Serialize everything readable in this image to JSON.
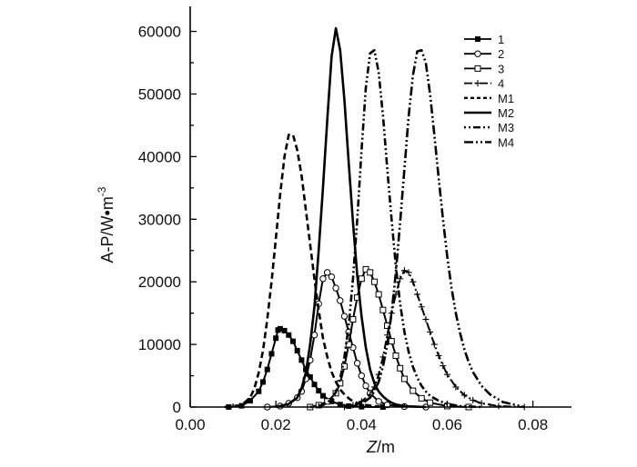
{
  "chart_data": {
    "type": "line",
    "xlabel": {
      "var": "Z",
      "unit": "/m"
    },
    "ylabel": {
      "base": "A-P/W•m",
      "sup": "-3"
    },
    "xlim": [
      0,
      0.089
    ],
    "ylim": [
      0,
      64000
    ],
    "xticks": [
      0.0,
      0.02,
      0.04,
      0.06,
      0.08
    ],
    "xtick_labels": [
      "0.00",
      "0.02",
      "0.04",
      "0.06",
      "0.08"
    ],
    "yticks": [
      0,
      10000,
      20000,
      30000,
      40000,
      50000,
      60000
    ],
    "ytick_labels": [
      "0",
      "10000",
      "20000",
      "30000",
      "40000",
      "50000",
      "60000"
    ],
    "legend_position": "top-right",
    "series": [
      {
        "name": "1",
        "line": "solid",
        "marker": "square-filled",
        "markerStep": 1,
        "x": [
          0.009,
          0.012,
          0.014,
          0.016,
          0.017,
          0.018,
          0.019,
          0.02,
          0.0205,
          0.021,
          0.022,
          0.023,
          0.024,
          0.025,
          0.026,
          0.027,
          0.028,
          0.029,
          0.03,
          0.031,
          0.033,
          0.035,
          0.037,
          0.04,
          0.045
        ],
        "y": [
          0,
          200,
          1000,
          2500,
          4000,
          6000,
          8500,
          11000,
          12300,
          12500,
          12200,
          11500,
          10500,
          9000,
          7500,
          6000,
          4800,
          3600,
          2600,
          1800,
          900,
          400,
          150,
          50,
          0
        ]
      },
      {
        "name": "2",
        "line": "solid",
        "marker": "circle-open",
        "markerStep": 1,
        "x": [
          0.018,
          0.021,
          0.023,
          0.025,
          0.026,
          0.027,
          0.028,
          0.029,
          0.03,
          0.031,
          0.032,
          0.033,
          0.034,
          0.035,
          0.036,
          0.037,
          0.038,
          0.039,
          0.04,
          0.041,
          0.042,
          0.044,
          0.046,
          0.05,
          0.055
        ],
        "y": [
          0,
          150,
          600,
          1500,
          2500,
          4500,
          7500,
          11500,
          16500,
          20500,
          21500,
          20800,
          19000,
          17000,
          14500,
          12000,
          9500,
          7000,
          5000,
          3400,
          2200,
          900,
          350,
          80,
          0
        ]
      },
      {
        "name": "3",
        "line": "solid",
        "marker": "square-open",
        "markerStep": 1,
        "x": [
          0.028,
          0.03,
          0.032,
          0.034,
          0.035,
          0.036,
          0.037,
          0.038,
          0.039,
          0.04,
          0.041,
          0.042,
          0.043,
          0.044,
          0.045,
          0.046,
          0.047,
          0.048,
          0.049,
          0.05,
          0.052,
          0.054,
          0.056,
          0.06,
          0.065
        ],
        "y": [
          0,
          300,
          900,
          2200,
          3800,
          6500,
          10000,
          14000,
          17500,
          20500,
          22000,
          21500,
          20000,
          18000,
          15500,
          13000,
          10500,
          8200,
          6200,
          4500,
          2600,
          1400,
          700,
          150,
          0
        ]
      },
      {
        "name": "4",
        "line": "dashdot",
        "marker": "plus",
        "markerStep": 1,
        "x": [
          0.036,
          0.038,
          0.04,
          0.042,
          0.043,
          0.044,
          0.045,
          0.046,
          0.047,
          0.048,
          0.049,
          0.05,
          0.051,
          0.052,
          0.053,
          0.054,
          0.055,
          0.056,
          0.057,
          0.058,
          0.059,
          0.06,
          0.062,
          0.064,
          0.066,
          0.068,
          0.072,
          0.078
        ],
        "y": [
          0,
          300,
          900,
          2000,
          3200,
          5200,
          8000,
          11500,
          15000,
          18000,
          20500,
          21800,
          21500,
          20000,
          18000,
          16000,
          14000,
          12000,
          10000,
          8200,
          6600,
          5200,
          3200,
          1900,
          1100,
          600,
          150,
          0
        ]
      },
      {
        "name": "M1",
        "line": "dashed",
        "marker": "none",
        "x": [
          0.008,
          0.012,
          0.014,
          0.015,
          0.016,
          0.017,
          0.018,
          0.019,
          0.02,
          0.021,
          0.022,
          0.023,
          0.024,
          0.025,
          0.026,
          0.027,
          0.028,
          0.029,
          0.03,
          0.031,
          0.032,
          0.033,
          0.034,
          0.035,
          0.036,
          0.037,
          0.038,
          0.04,
          0.045
        ],
        "y": [
          0,
          300,
          1500,
          3000,
          5500,
          9000,
          14000,
          20000,
          27000,
          34000,
          40000,
          43500,
          43500,
          41000,
          37000,
          31500,
          26000,
          20500,
          15500,
          11000,
          8000,
          5600,
          4000,
          2800,
          2000,
          1400,
          900,
          400,
          0
        ]
      },
      {
        "name": "M2",
        "line": "solid",
        "marker": "none",
        "x": [
          0.02,
          0.023,
          0.025,
          0.026,
          0.027,
          0.028,
          0.029,
          0.03,
          0.031,
          0.032,
          0.033,
          0.034,
          0.035,
          0.036,
          0.037,
          0.038,
          0.039,
          0.04,
          0.041,
          0.042,
          0.043,
          0.044,
          0.045,
          0.046,
          0.047,
          0.048,
          0.05,
          0.055
        ],
        "y": [
          0,
          500,
          1500,
          3000,
          5500,
          10000,
          16000,
          25000,
          35000,
          46000,
          56000,
          60500,
          57000,
          49000,
          39000,
          29500,
          21000,
          14500,
          9500,
          6000,
          3800,
          2500,
          1700,
          1100,
          700,
          400,
          150,
          0
        ]
      },
      {
        "name": "M3",
        "line": "dotted-dash",
        "marker": "none",
        "x": [
          0.028,
          0.031,
          0.033,
          0.034,
          0.035,
          0.036,
          0.037,
          0.038,
          0.039,
          0.04,
          0.041,
          0.042,
          0.043,
          0.044,
          0.045,
          0.046,
          0.047,
          0.048,
          0.049,
          0.05,
          0.051,
          0.052,
          0.053,
          0.054,
          0.055,
          0.056,
          0.058,
          0.06,
          0.063,
          0.068
        ],
        "y": [
          0,
          300,
          1200,
          2400,
          4500,
          8000,
          13000,
          20500,
          30000,
          41000,
          51000,
          56500,
          57000,
          53500,
          46500,
          38000,
          30000,
          22500,
          16500,
          12000,
          8800,
          6400,
          4700,
          3400,
          2500,
          1800,
          1000,
          500,
          150,
          0
        ]
      },
      {
        "name": "M4",
        "line": "dash-dot-dot",
        "marker": "none",
        "x": [
          0.036,
          0.04,
          0.042,
          0.043,
          0.044,
          0.045,
          0.046,
          0.047,
          0.048,
          0.049,
          0.05,
          0.051,
          0.052,
          0.053,
          0.054,
          0.055,
          0.056,
          0.057,
          0.058,
          0.059,
          0.06,
          0.061,
          0.062,
          0.063,
          0.064,
          0.065,
          0.066,
          0.068,
          0.07,
          0.073,
          0.078
        ],
        "y": [
          0,
          500,
          1500,
          2500,
          4000,
          6500,
          10000,
          15000,
          21500,
          29500,
          38000,
          46500,
          53000,
          56800,
          57000,
          55000,
          50000,
          43500,
          36500,
          30000,
          24000,
          19000,
          15000,
          11800,
          9200,
          7200,
          5600,
          3400,
          2000,
          800,
          0
        ]
      }
    ]
  }
}
